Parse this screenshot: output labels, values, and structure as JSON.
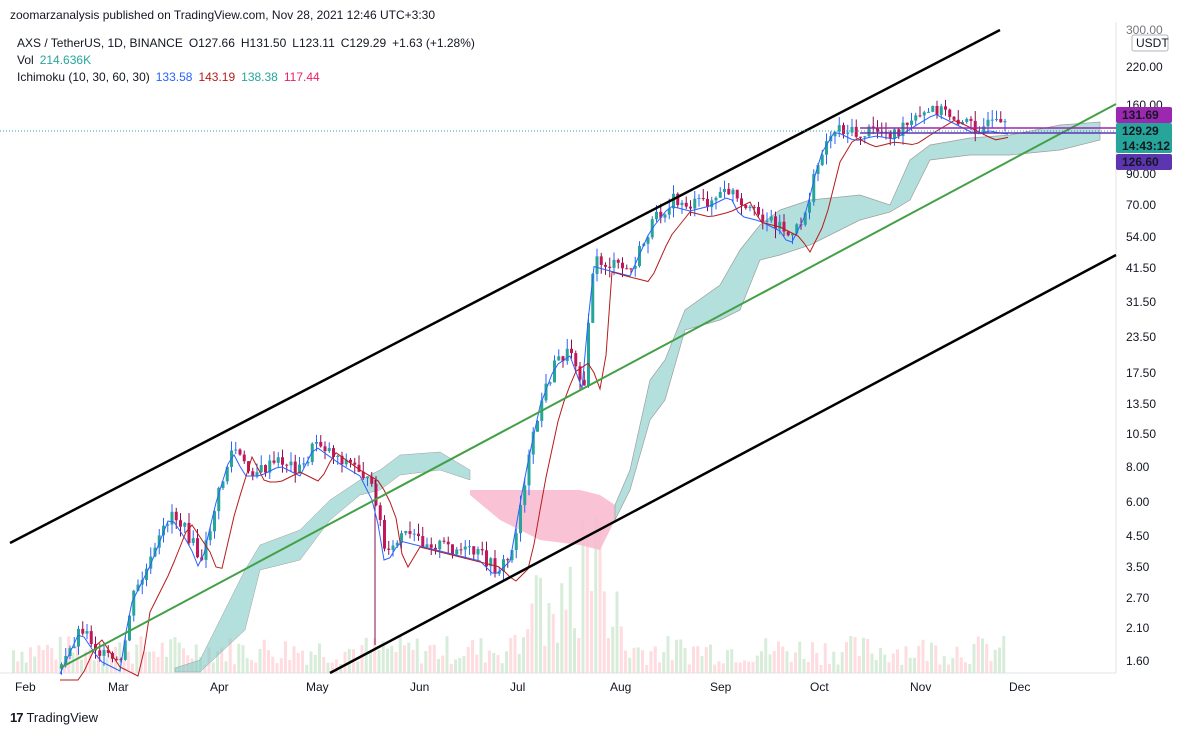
{
  "header": {
    "published": "zoomarzanalysis published on TradingView.com, Nov 28, 2021 12:46 UTC+3:30"
  },
  "legend": {
    "symbol": "AXS / TetherUS, 1D, BINANCE",
    "o": "O127.66",
    "h": "H131.50",
    "l": "L123.11",
    "c": "C129.29",
    "chg": "+1.63 (+1.28%)",
    "vol_label": "Vol",
    "vol_value": "214.636K",
    "ichimoku_label": "Ichimoku (10, 30, 60, 30)",
    "ich_values": [
      "133.58",
      "143.19",
      "138.38",
      "117.44"
    ]
  },
  "price_axis": {
    "currency": "USDT",
    "ticks": [
      "300.00",
      "220.00",
      "160.00",
      "90.00",
      "70.00",
      "54.00",
      "41.50",
      "31.50",
      "23.50",
      "17.50",
      "13.50",
      "10.50",
      "8.00",
      "6.00",
      "4.50",
      "3.50",
      "2.70",
      "2.10",
      "1.60"
    ]
  },
  "price_tags": {
    "tag1": "131.69",
    "tag2": "129.29",
    "tag2_time": "14:43:12",
    "tag3": "126.60"
  },
  "time_axis": {
    "ticks": [
      "Feb",
      "Mar",
      "Apr",
      "May",
      "Jun",
      "Jul",
      "Aug",
      "Sep",
      "Oct",
      "Nov",
      "Dec"
    ]
  },
  "footer": {
    "brand": "TradingView",
    "logo": "17"
  },
  "colors": {
    "up": "#26a69a",
    "down": "#ef5350",
    "candle_up": "#2962ff",
    "tenkan": "#2962ff",
    "kijun": "#b71c1c",
    "cloud_up": "#80cbc4",
    "cloud_down": "#f8bbd0",
    "channel": "#000000",
    "midline": "#43a047",
    "tag_purple": "#9c27b0",
    "tag_teal": "#26a69a",
    "tag_indigo": "#5e35b1"
  }
}
